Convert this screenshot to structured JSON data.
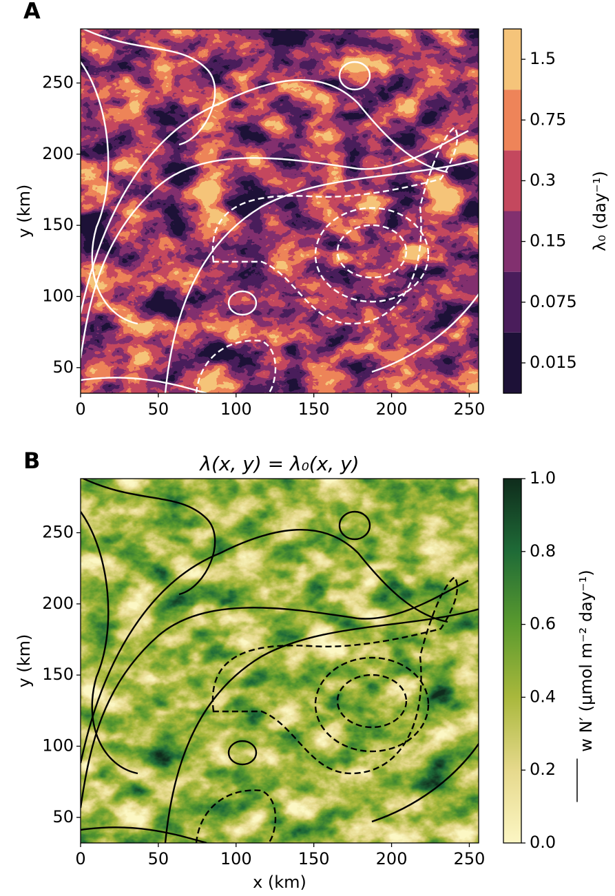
{
  "chart_data": [
    {
      "type": "heatmap",
      "panel_label": "A",
      "xlim": [
        0,
        256
      ],
      "xticks": [
        0,
        50,
        100,
        150,
        200,
        250
      ],
      "ylim": [
        32,
        288
      ],
      "yticks": [
        50,
        100,
        150,
        200,
        250
      ],
      "ylabel": "y (km)",
      "colorbar": {
        "kind": "discrete",
        "label": "λ₀  (day⁻¹)",
        "labels": [
          0.015,
          0.075,
          0.15,
          0.3,
          0.75,
          1.5
        ],
        "colors": [
          "#1d1137",
          "#4a1d5b",
          "#82306f",
          "#c4485e",
          "#ee8459",
          "#f5c47a"
        ]
      }
    },
    {
      "type": "heatmap",
      "panel_label": "B",
      "title": "λ(x, y) = λ₀(x, y)",
      "xlim": [
        0,
        256
      ],
      "xticks": [
        0,
        50,
        100,
        150,
        200,
        250
      ],
      "ylim": [
        32,
        288
      ],
      "yticks": [
        50,
        100,
        150,
        200,
        250
      ],
      "xlabel": "x (km)",
      "ylabel": "y (km)",
      "colorbar": {
        "kind": "continuous",
        "label": "w N′ (μmol m⁻² day⁻¹)",
        "lim": [
          0,
          1
        ],
        "ticks": [
          {
            "value": 0,
            "label": "0.0"
          },
          {
            "value": 0.2,
            "label": "0.2"
          },
          {
            "value": 0.4,
            "label": "0.4"
          },
          {
            "value": 0.6,
            "label": "0.6"
          },
          {
            "value": 0.8,
            "label": "0.8"
          },
          {
            "value": 1,
            "label": "1.0"
          }
        ],
        "colors": [
          "#fcf6c4",
          "#e6d98c",
          "#a9b83c",
          "#5a9a2e",
          "#1f6b37",
          "#0f2c1c"
        ]
      }
    }
  ]
}
